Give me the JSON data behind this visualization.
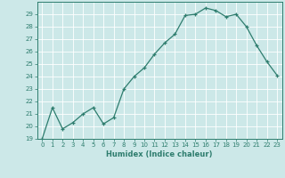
{
  "x": [
    0,
    1,
    2,
    3,
    4,
    5,
    6,
    7,
    8,
    9,
    10,
    11,
    12,
    13,
    14,
    15,
    16,
    17,
    18,
    19,
    20,
    21,
    22,
    23
  ],
  "y": [
    19,
    21.5,
    19.8,
    20.3,
    21.0,
    21.5,
    20.2,
    20.7,
    23.0,
    24.0,
    24.7,
    25.8,
    26.7,
    27.4,
    28.9,
    29.0,
    29.5,
    29.3,
    28.8,
    29.0,
    28.0,
    26.5,
    25.2,
    24.1
  ],
  "line_color": "#2e7d6e",
  "marker": "+",
  "marker_size": 3,
  "bg_color": "#cce8e8",
  "grid_color": "#ffffff",
  "tick_color": "#2e7d6e",
  "xlabel": "Humidex (Indice chaleur)",
  "ylim": [
    19,
    30
  ],
  "yticks": [
    19,
    20,
    21,
    22,
    23,
    24,
    25,
    26,
    27,
    28,
    29
  ],
  "xlim": [
    -0.5,
    23.5
  ],
  "xticks": [
    0,
    1,
    2,
    3,
    4,
    5,
    6,
    7,
    8,
    9,
    10,
    11,
    12,
    13,
    14,
    15,
    16,
    17,
    18,
    19,
    20,
    21,
    22,
    23
  ]
}
